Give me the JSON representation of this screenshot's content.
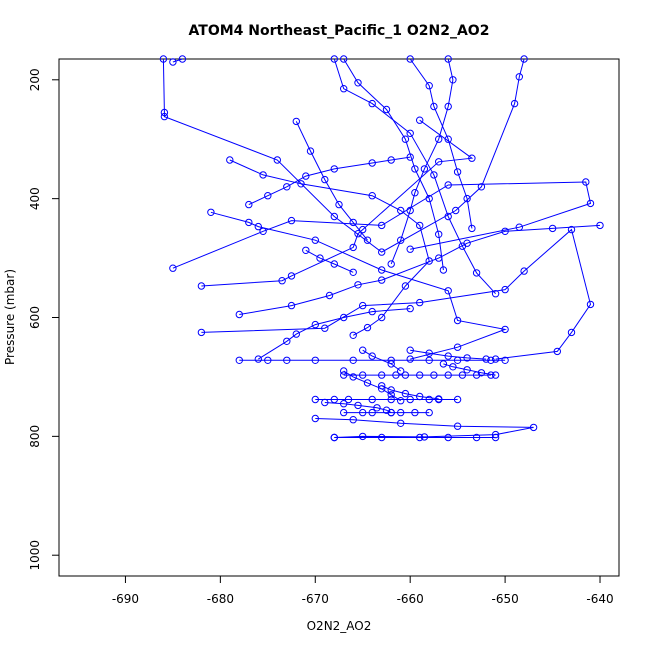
{
  "chart_data": {
    "type": "scatter",
    "title": "ATOM4 Northeast_Pacific_1 O2N2_AO2",
    "xlabel": "O2N2_AO2",
    "ylabel": "Pressure (mbar)",
    "xlim": [
      -697,
      -638
    ],
    "ylim": [
      1035,
      165
    ],
    "y_inverted": true,
    "xticks": [
      -690,
      -680,
      -670,
      -660,
      -650,
      -640
    ],
    "yticks": [
      200,
      400,
      600,
      800,
      1000
    ],
    "grid": false,
    "legend": "none",
    "colors": {
      "series": "#0000ff",
      "axis": "#000000",
      "background": "#ffffff"
    },
    "marker": "open-circle",
    "connected": true,
    "series": [
      {
        "points": [
          [
            -686.0,
            165
          ],
          [
            -685.9,
            255
          ],
          [
            -685.9,
            262
          ],
          [
            -674,
            335
          ],
          [
            -668,
            430
          ],
          [
            -663,
            490
          ],
          [
            -655.2,
            420
          ],
          [
            -652.5,
            380
          ],
          [
            -649,
            240
          ],
          [
            -648.5,
            195
          ],
          [
            -648,
            165
          ]
        ]
      },
      {
        "points": [
          [
            -685.0,
            170
          ],
          [
            -684.0,
            165
          ]
        ]
      },
      {
        "points": [
          [
            -685,
            517
          ],
          [
            -675.5,
            455
          ],
          [
            -672.5,
            437
          ],
          [
            -663,
            445
          ],
          [
            -656,
            377
          ],
          [
            -641.5,
            372
          ],
          [
            -641,
            408
          ],
          [
            -648.5,
            448
          ],
          [
            -660,
            485
          ]
        ]
      },
      {
        "points": [
          [
            -682,
            547
          ],
          [
            -673.5,
            538
          ],
          [
            -672.5,
            530
          ],
          [
            -666,
            482
          ],
          [
            -665.5,
            459
          ],
          [
            -665,
            452
          ],
          [
            -657,
            338
          ],
          [
            -653.5,
            332
          ],
          [
            -659,
            268
          ]
        ]
      },
      {
        "points": [
          [
            -682,
            625
          ],
          [
            -669,
            618
          ],
          [
            -665,
            580
          ],
          [
            -659,
            575
          ],
          [
            -650,
            553
          ],
          [
            -648,
            522
          ],
          [
            -643,
            452
          ],
          [
            -641,
            578
          ],
          [
            -643,
            625
          ],
          [
            -644.5,
            657
          ],
          [
            -651,
            670
          ]
        ]
      },
      {
        "points": [
          [
            -681,
            423
          ],
          [
            -677,
            440
          ],
          [
            -676,
            447
          ],
          [
            -670,
            470
          ],
          [
            -663,
            520
          ],
          [
            -656,
            555
          ],
          [
            -655,
            605
          ],
          [
            -650,
            620
          ],
          [
            -655,
            650
          ],
          [
            -660,
            670
          ]
        ]
      },
      {
        "points": [
          [
            -679,
            335
          ],
          [
            -675.5,
            360
          ],
          [
            -671.5,
            375
          ],
          [
            -664,
            395
          ],
          [
            -661,
            420
          ],
          [
            -659,
            445
          ],
          [
            -658,
            505
          ],
          [
            -660.5,
            547
          ],
          [
            -663,
            600
          ],
          [
            -664.5,
            617
          ],
          [
            -666,
            630
          ]
        ]
      },
      {
        "points": [
          [
            -678,
            595
          ],
          [
            -672.5,
            580
          ],
          [
            -668.5,
            563
          ],
          [
            -665.5,
            545
          ],
          [
            -663,
            537
          ],
          [
            -657,
            500
          ],
          [
            -654,
            475
          ],
          [
            -650,
            455
          ],
          [
            -645,
            450
          ],
          [
            -640,
            445
          ]
        ]
      },
      {
        "points": [
          [
            -677,
            410
          ],
          [
            -675,
            395
          ],
          [
            -673,
            380
          ],
          [
            -671,
            362
          ],
          [
            -668,
            350
          ],
          [
            -664,
            340
          ],
          [
            -662,
            335
          ],
          [
            -660,
            330
          ]
        ]
      },
      {
        "points": [
          [
            -676,
            670
          ],
          [
            -673,
            640
          ],
          [
            -672,
            628
          ],
          [
            -670,
            612
          ],
          [
            -667,
            600
          ],
          [
            -664,
            590
          ],
          [
            -660,
            585
          ]
        ]
      },
      {
        "points": [
          [
            -672,
            270
          ],
          [
            -670.5,
            320
          ],
          [
            -669,
            368
          ],
          [
            -667.5,
            410
          ],
          [
            -666,
            440
          ],
          [
            -664.5,
            470
          ]
        ]
      },
      {
        "points": [
          [
            -671,
            487
          ],
          [
            -669.5,
            500
          ],
          [
            -668,
            510
          ],
          [
            -666,
            524
          ]
        ]
      },
      {
        "points": [
          [
            -668,
            165
          ],
          [
            -667,
            215
          ],
          [
            -664,
            240
          ],
          [
            -660,
            290
          ],
          [
            -657.5,
            360
          ],
          [
            -656,
            430
          ],
          [
            -654.5,
            480
          ],
          [
            -653,
            525
          ],
          [
            -651,
            560
          ]
        ]
      },
      {
        "points": [
          [
            -667,
            165
          ],
          [
            -665.5,
            205
          ],
          [
            -662.5,
            250
          ],
          [
            -660.5,
            300
          ],
          [
            -659.5,
            350
          ],
          [
            -658,
            400
          ],
          [
            -657,
            460
          ],
          [
            -656.5,
            520
          ]
        ]
      },
      {
        "points": [
          [
            -660,
            165
          ],
          [
            -658,
            210
          ],
          [
            -657.5,
            245
          ],
          [
            -656,
            300
          ],
          [
            -655,
            355
          ],
          [
            -654,
            400
          ],
          [
            -653.5,
            450
          ]
        ]
      },
      {
        "points": [
          [
            -656,
            165
          ],
          [
            -655.5,
            200
          ],
          [
            -656,
            245
          ],
          [
            -657,
            300
          ],
          [
            -658.5,
            350
          ],
          [
            -659.5,
            390
          ],
          [
            -660,
            420
          ],
          [
            -661,
            470
          ],
          [
            -662,
            510
          ]
        ]
      },
      {
        "points": [
          [
            -678,
            672
          ],
          [
            -675,
            672
          ],
          [
            -673,
            672
          ],
          [
            -670,
            672
          ],
          [
            -666,
            672
          ],
          [
            -662,
            672
          ],
          [
            -658,
            672
          ],
          [
            -655,
            672
          ],
          [
            -651.5,
            672
          ],
          [
            -650,
            672
          ]
        ]
      },
      {
        "points": [
          [
            -667,
            697
          ],
          [
            -665,
            697
          ],
          [
            -663,
            697
          ],
          [
            -661.5,
            697
          ],
          [
            -660.5,
            697
          ],
          [
            -659,
            697
          ],
          [
            -657.5,
            697
          ],
          [
            -656,
            697
          ],
          [
            -654.5,
            697
          ],
          [
            -653,
            697
          ],
          [
            -651.5,
            697
          ]
        ]
      },
      {
        "points": [
          [
            -670,
            738
          ],
          [
            -668,
            738
          ],
          [
            -666.5,
            738
          ],
          [
            -664,
            738
          ],
          [
            -662,
            738
          ],
          [
            -660,
            738
          ],
          [
            -658,
            738
          ],
          [
            -657,
            738
          ],
          [
            -655,
            738
          ]
        ]
      },
      {
        "points": [
          [
            -667,
            760
          ],
          [
            -665,
            760
          ],
          [
            -664,
            760
          ],
          [
            -662,
            760
          ],
          [
            -661,
            760
          ],
          [
            -659.5,
            760
          ],
          [
            -658,
            760
          ]
        ]
      },
      {
        "points": [
          [
            -670,
            770
          ],
          [
            -666,
            772
          ],
          [
            -661,
            778
          ],
          [
            -655,
            783
          ],
          [
            -647,
            785
          ],
          [
            -651,
            797
          ],
          [
            -658.5,
            801
          ],
          [
            -665,
            800
          ],
          [
            -668,
            802
          ]
        ]
      },
      {
        "points": [
          [
            -668,
            802
          ],
          [
            -663,
            802
          ],
          [
            -659,
            802
          ],
          [
            -656,
            802
          ],
          [
            -653,
            802
          ],
          [
            -651,
            802
          ]
        ]
      },
      {
        "points": [
          [
            -669,
            743
          ],
          [
            -667,
            745
          ],
          [
            -665.5,
            748
          ],
          [
            -663.5,
            752
          ],
          [
            -662.5,
            756
          ],
          [
            -662,
            760
          ]
        ]
      },
      {
        "points": [
          [
            -667,
            690
          ],
          [
            -666,
            700
          ],
          [
            -664.5,
            710
          ],
          [
            -663,
            720
          ],
          [
            -662,
            730
          ],
          [
            -661,
            740
          ]
        ]
      },
      {
        "points": [
          [
            -660,
            655
          ],
          [
            -658,
            660
          ],
          [
            -656,
            665
          ],
          [
            -654,
            668
          ],
          [
            -652,
            670
          ]
        ]
      },
      {
        "points": [
          [
            -665,
            655
          ],
          [
            -664,
            665
          ],
          [
            -662,
            678
          ],
          [
            -661,
            690
          ]
        ]
      },
      {
        "points": [
          [
            -656.5,
            678
          ],
          [
            -655.5,
            683
          ],
          [
            -654,
            688
          ],
          [
            -652.5,
            693
          ],
          [
            -651,
            697
          ]
        ]
      },
      {
        "points": [
          [
            -663,
            715
          ],
          [
            -662,
            722
          ],
          [
            -660.5,
            728
          ],
          [
            -659,
            733
          ],
          [
            -657,
            737
          ]
        ]
      }
    ]
  }
}
